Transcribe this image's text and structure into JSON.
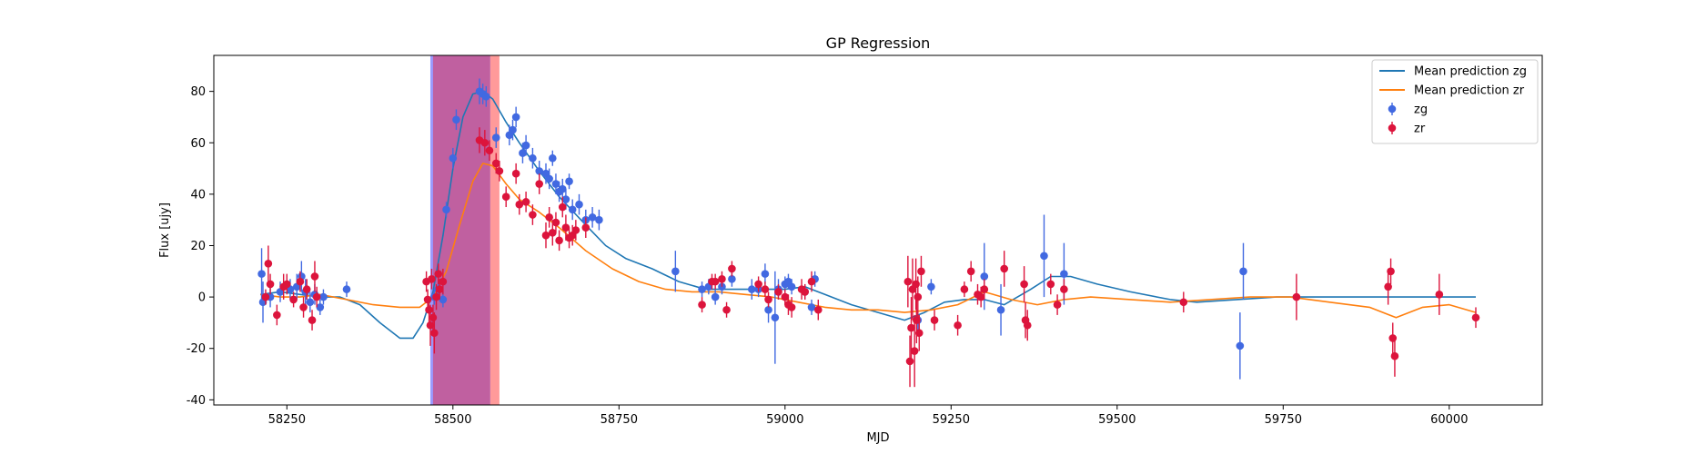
{
  "chart_data": {
    "type": "scatter",
    "title": "GP Regression",
    "xlabel": "MJD",
    "ylabel": "Flux [ujy]",
    "xlim": [
      58140,
      60140
    ],
    "ylim": [
      -42,
      94
    ],
    "xticks": [
      58250,
      58500,
      58750,
      59000,
      59250,
      59500,
      59750,
      60000
    ],
    "yticks": [
      -40,
      -20,
      0,
      20,
      40,
      60,
      80
    ],
    "legend_position": "top-right",
    "shaded_regions": [
      {
        "x0": 58470,
        "x1": 58570,
        "color": "#ff9a9a"
      },
      {
        "x0": 58466,
        "x1": 58556,
        "color": "#9a9aff"
      },
      {
        "x0": 58470,
        "x1": 58556,
        "color": "#c060a0"
      }
    ],
    "series": [
      {
        "name": "Mean prediction zg",
        "kind": "line",
        "color": "#1f77b4",
        "points": [
          [
            58210,
            1
          ],
          [
            58240,
            2
          ],
          [
            58270,
            1
          ],
          [
            58300,
            0
          ],
          [
            58330,
            0
          ],
          [
            58360,
            -3
          ],
          [
            58390,
            -10
          ],
          [
            58420,
            -16
          ],
          [
            58440,
            -16
          ],
          [
            58455,
            -10
          ],
          [
            58470,
            2
          ],
          [
            58485,
            24
          ],
          [
            58500,
            50
          ],
          [
            58515,
            70
          ],
          [
            58530,
            79
          ],
          [
            58545,
            80
          ],
          [
            58560,
            77
          ],
          [
            58580,
            68
          ],
          [
            58600,
            60
          ],
          [
            58630,
            49
          ],
          [
            58660,
            39
          ],
          [
            58700,
            28
          ],
          [
            58730,
            20
          ],
          [
            58760,
            15
          ],
          [
            58800,
            11
          ],
          [
            58840,
            6
          ],
          [
            58880,
            3
          ],
          [
            58920,
            3
          ],
          [
            58960,
            3
          ],
          [
            59000,
            3
          ],
          [
            59030,
            4
          ],
          [
            59060,
            1
          ],
          [
            59100,
            -3
          ],
          [
            59140,
            -6
          ],
          [
            59180,
            -9
          ],
          [
            59210,
            -6
          ],
          [
            59240,
            -2
          ],
          [
            59270,
            -1
          ],
          [
            59300,
            -1
          ],
          [
            59330,
            -3
          ],
          [
            59370,
            3
          ],
          [
            59400,
            8
          ],
          [
            59430,
            8
          ],
          [
            59470,
            5
          ],
          [
            59520,
            2
          ],
          [
            59580,
            -1
          ],
          [
            59620,
            -2
          ],
          [
            59680,
            -1
          ],
          [
            59740,
            0
          ],
          [
            59800,
            0
          ],
          [
            59900,
            0
          ],
          [
            59980,
            0
          ],
          [
            60040,
            0
          ]
        ]
      },
      {
        "name": "Mean prediction zr",
        "kind": "line",
        "color": "#ff7f0e",
        "points": [
          [
            58210,
            1
          ],
          [
            58240,
            0
          ],
          [
            58270,
            0
          ],
          [
            58300,
            1
          ],
          [
            58340,
            -1
          ],
          [
            58380,
            -3
          ],
          [
            58420,
            -4
          ],
          [
            58450,
            -4
          ],
          [
            58470,
            0
          ],
          [
            58490,
            10
          ],
          [
            58510,
            28
          ],
          [
            58530,
            45
          ],
          [
            58545,
            52
          ],
          [
            58560,
            51
          ],
          [
            58580,
            44
          ],
          [
            58600,
            38
          ],
          [
            58630,
            33
          ],
          [
            58660,
            27
          ],
          [
            58700,
            18
          ],
          [
            58740,
            11
          ],
          [
            58780,
            6
          ],
          [
            58820,
            3
          ],
          [
            58860,
            2
          ],
          [
            58900,
            2
          ],
          [
            58940,
            1
          ],
          [
            58980,
            0
          ],
          [
            59020,
            -2
          ],
          [
            59060,
            -4
          ],
          [
            59100,
            -5
          ],
          [
            59140,
            -5
          ],
          [
            59180,
            -6
          ],
          [
            59220,
            -5
          ],
          [
            59260,
            -3
          ],
          [
            59300,
            2
          ],
          [
            59340,
            -1
          ],
          [
            59380,
            -3
          ],
          [
            59420,
            -1
          ],
          [
            59460,
            0
          ],
          [
            59520,
            -1
          ],
          [
            59580,
            -2
          ],
          [
            59640,
            -1
          ],
          [
            59700,
            0
          ],
          [
            59760,
            0
          ],
          [
            59820,
            -2
          ],
          [
            59880,
            -4
          ],
          [
            59920,
            -8
          ],
          [
            59960,
            -4
          ],
          [
            60000,
            -3
          ],
          [
            60040,
            -6
          ]
        ]
      },
      {
        "name": "zg",
        "kind": "errorbar",
        "color": "#4169e1",
        "points": [
          [
            58212,
            9,
            10
          ],
          [
            58214,
            -2,
            8
          ],
          [
            58225,
            0,
            4
          ],
          [
            58240,
            2,
            4
          ],
          [
            58255,
            3,
            4
          ],
          [
            58265,
            4,
            5
          ],
          [
            58272,
            8,
            6
          ],
          [
            58278,
            2,
            5
          ],
          [
            58285,
            -2,
            4
          ],
          [
            58292,
            1,
            4
          ],
          [
            58300,
            -4,
            3
          ],
          [
            58305,
            0,
            3
          ],
          [
            58340,
            3,
            3
          ],
          [
            58472,
            0,
            3
          ],
          [
            58478,
            3,
            3
          ],
          [
            58485,
            -1,
            3
          ],
          [
            58490,
            34,
            3
          ],
          [
            58500,
            54,
            4
          ],
          [
            58505,
            69,
            4
          ],
          [
            58540,
            80,
            5
          ],
          [
            58545,
            79,
            4
          ],
          [
            58550,
            78,
            4
          ],
          [
            58565,
            62,
            4
          ],
          [
            58585,
            63,
            4
          ],
          [
            58590,
            65,
            4
          ],
          [
            58595,
            70,
            4
          ],
          [
            58605,
            56,
            4
          ],
          [
            58610,
            59,
            4
          ],
          [
            58620,
            54,
            4
          ],
          [
            58630,
            49,
            4
          ],
          [
            58640,
            48,
            4
          ],
          [
            58645,
            46,
            4
          ],
          [
            58650,
            54,
            3
          ],
          [
            58655,
            44,
            4
          ],
          [
            58660,
            41,
            4
          ],
          [
            58665,
            42,
            4
          ],
          [
            58670,
            38,
            4
          ],
          [
            58675,
            45,
            3
          ],
          [
            58680,
            34,
            4
          ],
          [
            58690,
            36,
            4
          ],
          [
            58700,
            30,
            4
          ],
          [
            58710,
            31,
            4
          ],
          [
            58720,
            30,
            4
          ],
          [
            58835,
            10,
            8
          ],
          [
            58875,
            3,
            3
          ],
          [
            58885,
            4,
            3
          ],
          [
            58895,
            0,
            3
          ],
          [
            58905,
            4,
            3
          ],
          [
            58920,
            7,
            3
          ],
          [
            58950,
            3,
            4
          ],
          [
            58960,
            3,
            3
          ],
          [
            58970,
            9,
            4
          ],
          [
            58975,
            -5,
            5
          ],
          [
            58985,
            -8,
            18
          ],
          [
            58990,
            3,
            4
          ],
          [
            59000,
            5,
            3
          ],
          [
            59005,
            6,
            3
          ],
          [
            59010,
            4,
            3
          ],
          [
            59030,
            2,
            3
          ],
          [
            59040,
            -4,
            3
          ],
          [
            59045,
            7,
            3
          ],
          [
            59200,
            -9,
            4
          ],
          [
            59220,
            4,
            3
          ],
          [
            59300,
            8,
            13
          ],
          [
            59325,
            -5,
            10
          ],
          [
            59390,
            16,
            16
          ],
          [
            59420,
            9,
            12
          ],
          [
            59685,
            -19,
            13
          ],
          [
            59690,
            10,
            11
          ]
        ]
      },
      {
        "name": "zr",
        "kind": "errorbar",
        "color": "#dc143c",
        "points": [
          [
            58218,
            0,
            3
          ],
          [
            58222,
            13,
            7
          ],
          [
            58225,
            5,
            4
          ],
          [
            58235,
            -7,
            4
          ],
          [
            58245,
            4,
            5
          ],
          [
            58250,
            5,
            4
          ],
          [
            58260,
            -1,
            3
          ],
          [
            58270,
            6,
            4
          ],
          [
            58275,
            -4,
            4
          ],
          [
            58280,
            3,
            4
          ],
          [
            58288,
            -9,
            4
          ],
          [
            58292,
            8,
            6
          ],
          [
            58295,
            0,
            4
          ],
          [
            58460,
            6,
            4
          ],
          [
            58462,
            -1,
            4
          ],
          [
            58464,
            -5,
            5
          ],
          [
            58466,
            -11,
            8
          ],
          [
            58468,
            7,
            4
          ],
          [
            58470,
            -8,
            5
          ],
          [
            58472,
            -14,
            8
          ],
          [
            58475,
            0,
            5
          ],
          [
            58478,
            9,
            4
          ],
          [
            58480,
            3,
            4
          ],
          [
            58485,
            6,
            5
          ],
          [
            58540,
            61,
            5
          ],
          [
            58548,
            60,
            5
          ],
          [
            58555,
            57,
            4
          ],
          [
            58565,
            52,
            4
          ],
          [
            58570,
            49,
            4
          ],
          [
            58580,
            39,
            4
          ],
          [
            58595,
            48,
            4
          ],
          [
            58600,
            36,
            4
          ],
          [
            58610,
            37,
            4
          ],
          [
            58620,
            32,
            4
          ],
          [
            58630,
            44,
            4
          ],
          [
            58640,
            24,
            5
          ],
          [
            58645,
            31,
            4
          ],
          [
            58650,
            25,
            5
          ],
          [
            58655,
            29,
            4
          ],
          [
            58660,
            22,
            4
          ],
          [
            58665,
            35,
            4
          ],
          [
            58670,
            27,
            5
          ],
          [
            58675,
            23,
            4
          ],
          [
            58680,
            24,
            4
          ],
          [
            58685,
            26,
            4
          ],
          [
            58700,
            27,
            4
          ],
          [
            58875,
            -3,
            3
          ],
          [
            58890,
            6,
            3
          ],
          [
            58895,
            6,
            3
          ],
          [
            58905,
            7,
            3
          ],
          [
            58912,
            -5,
            3
          ],
          [
            58920,
            11,
            3
          ],
          [
            58960,
            5,
            3
          ],
          [
            58970,
            3,
            3
          ],
          [
            58975,
            -1,
            3
          ],
          [
            58990,
            2,
            3
          ],
          [
            59000,
            0,
            3
          ],
          [
            59005,
            -3,
            4
          ],
          [
            59010,
            -4,
            4
          ],
          [
            59025,
            3,
            4
          ],
          [
            59030,
            2,
            3
          ],
          [
            59040,
            6,
            4
          ],
          [
            59050,
            -5,
            4
          ],
          [
            59185,
            6,
            10
          ],
          [
            59188,
            -25,
            10
          ],
          [
            59190,
            -12,
            12
          ],
          [
            59192,
            3,
            12
          ],
          [
            59195,
            -21,
            14
          ],
          [
            59197,
            5,
            10
          ],
          [
            59198,
            -9,
            9
          ],
          [
            59200,
            0,
            8
          ],
          [
            59202,
            -14,
            7
          ],
          [
            59205,
            10,
            6
          ],
          [
            59225,
            -9,
            4
          ],
          [
            59260,
            -11,
            4
          ],
          [
            59270,
            3,
            3
          ],
          [
            59280,
            10,
            4
          ],
          [
            59290,
            1,
            4
          ],
          [
            59295,
            0,
            4
          ],
          [
            59300,
            3,
            4
          ],
          [
            59330,
            11,
            7
          ],
          [
            59360,
            5,
            7
          ],
          [
            59362,
            -9,
            7
          ],
          [
            59365,
            -11,
            6
          ],
          [
            59400,
            5,
            4
          ],
          [
            59410,
            -3,
            4
          ],
          [
            59420,
            3,
            4
          ],
          [
            59600,
            -2,
            4
          ],
          [
            59770,
            0,
            9
          ],
          [
            59908,
            4,
            7
          ],
          [
            59912,
            10,
            5
          ],
          [
            59915,
            -16,
            6
          ],
          [
            59918,
            -23,
            8
          ],
          [
            59985,
            1,
            8
          ],
          [
            60040,
            -8,
            4
          ]
        ]
      }
    ]
  }
}
